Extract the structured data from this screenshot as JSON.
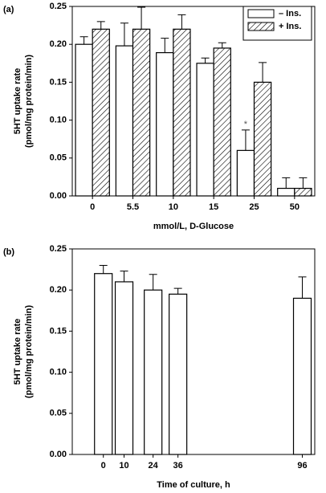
{
  "chart_data": [
    {
      "type": "bar",
      "panel_label": "(a)",
      "xlabel": "mmol/L, D-Glucose",
      "ylabel": [
        "5HT uptake rate",
        "(pmol/mg protein/min)"
      ],
      "categories": [
        "0",
        "5.5",
        "10",
        "15",
        "25",
        "50"
      ],
      "series": [
        {
          "name": "– Ins.",
          "color": "#ffffff",
          "hatch": false,
          "values": [
            0.2,
            0.198,
            0.189,
            0.175,
            0.06,
            0.01
          ],
          "errors": [
            0.01,
            0.03,
            0.019,
            0.007,
            0.027,
            0.014
          ]
        },
        {
          "name": "+ Ins.",
          "color": "#000000",
          "hatch": true,
          "values": [
            0.22,
            0.22,
            0.22,
            0.195,
            0.15,
            0.01
          ],
          "errors": [
            0.01,
            0.029,
            0.019,
            0.007,
            0.026,
            0.014
          ]
        }
      ],
      "annotations": [
        {
          "text": "*",
          "series": 0,
          "index": 4
        }
      ],
      "ylim": [
        0,
        0.25
      ],
      "yticks": [
        {
          "value": 0,
          "label": "0.00"
        },
        {
          "value": 0.05,
          "label": "0.05"
        },
        {
          "value": 0.1,
          "label": "0.10"
        },
        {
          "value": 0.15,
          "label": "0.15"
        },
        {
          "value": 0.2,
          "label": "0.20"
        },
        {
          "value": 0.25,
          "label": "0.25"
        }
      ],
      "legend": "upper right"
    },
    {
      "type": "bar",
      "panel_label": "(b)",
      "xlabel": "Time of culture, h",
      "ylabel": [
        "5HT uptake rate",
        "(pmol/mg protein/min)"
      ],
      "x": [
        0,
        10,
        24,
        36,
        96
      ],
      "series": [
        {
          "color": "#ffffff",
          "hatch": false,
          "values": [
            0.22,
            0.21,
            0.2,
            0.195,
            0.19
          ],
          "errors": [
            0.01,
            0.013,
            0.019,
            0.007,
            0.026
          ]
        }
      ],
      "xlim": [
        -15,
        102
      ],
      "xticks": [
        0,
        10,
        24,
        36,
        96
      ],
      "ylim": [
        0,
        0.25
      ],
      "yticks": [
        {
          "value": 0,
          "label": "0.00"
        },
        {
          "value": 0.05,
          "label": "0.05"
        },
        {
          "value": 0.1,
          "label": "0.10"
        },
        {
          "value": 0.15,
          "label": "0.15"
        },
        {
          "value": 0.2,
          "label": "0.20"
        },
        {
          "value": 0.25,
          "label": "0.25"
        }
      ]
    }
  ]
}
